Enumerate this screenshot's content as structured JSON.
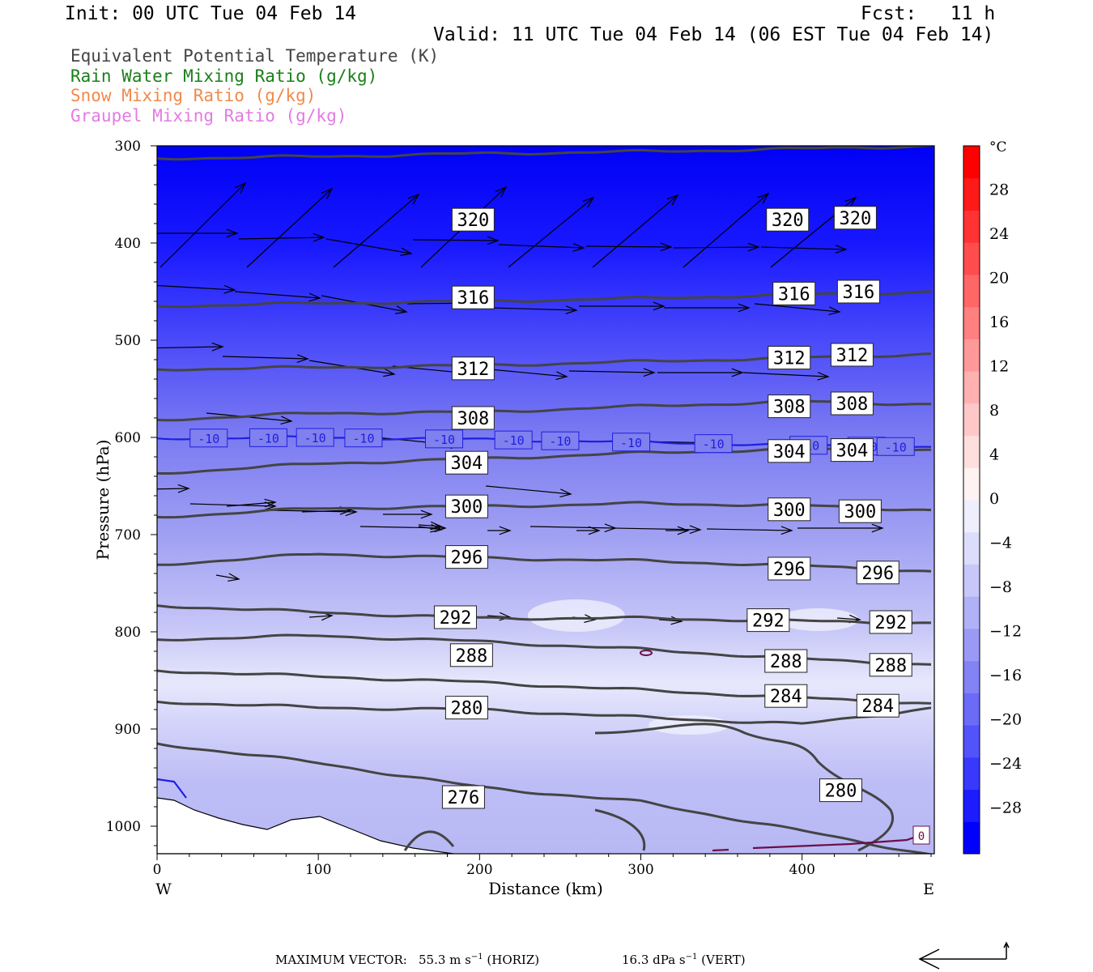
{
  "header": {
    "init": "Init: 00 UTC Tue 04 Feb 14",
    "fcst": "Fcst:   11 h",
    "valid": "Valid: 11 UTC Tue 04 Feb 14 (06 EST Tue 04 Feb 14)"
  },
  "legend": [
    {
      "label": "Equivalent Potential Temperature (K)",
      "color": "#444444"
    },
    {
      "label": "Rain Water Mixing Ratio (g/kg)",
      "color": "#1a7f1a"
    },
    {
      "label": "Snow Mixing Ratio (g/kg)",
      "color": "#f08a4b"
    },
    {
      "label": "Graupel Mixing Ratio (g/kg)",
      "color": "#e37be3"
    }
  ],
  "chart_data": {
    "type": "cross-section contour",
    "xlabel": "Distance (km)",
    "ylabel": "Pressure (hPa)",
    "xlim": [
      0,
      482
    ],
    "ylim": [
      1030,
      300
    ],
    "x_ticks": [
      "0",
      "100",
      "200",
      "300",
      "400"
    ],
    "y_ticks": [
      "300",
      "400",
      "500",
      "600",
      "700",
      "800",
      "900",
      "1000"
    ],
    "left_end_label": "W",
    "right_end_label": "E",
    "theta_e_contours": [
      {
        "value": "320",
        "p": [
          313,
          311,
          308,
          306,
          303,
          300
        ],
        "labels": [
          [
            196,
            376
          ],
          [
            391,
            376
          ],
          [
            433,
            374
          ]
        ]
      },
      {
        "value": "316",
        "p": [
          465,
          462,
          460,
          457,
          453,
          450
        ],
        "labels": [
          [
            196,
            456
          ],
          [
            395,
            452
          ],
          [
            435,
            450
          ]
        ]
      },
      {
        "value": "312",
        "p": [
          530,
          528,
          526,
          522,
          518,
          514
        ],
        "labels": [
          [
            196,
            529
          ],
          [
            392,
            518
          ],
          [
            431,
            515
          ]
        ]
      },
      {
        "value": "308",
        "p": [
          582,
          575,
          574,
          568,
          563,
          566
        ],
        "labels": [
          [
            196,
            580
          ],
          [
            392,
            568
          ],
          [
            431,
            565
          ]
        ]
      },
      {
        "value": "304",
        "p": [
          637,
          627,
          622,
          616,
          612,
          613
        ],
        "labels": [
          [
            192,
            626
          ],
          [
            392,
            614
          ],
          [
            431,
            613
          ]
        ]
      },
      {
        "value": "300",
        "p": [
          682,
          673,
          671,
          668,
          670,
          675
        ],
        "labels": [
          [
            192,
            671
          ],
          [
            392,
            674
          ],
          [
            436,
            676
          ]
        ]
      },
      {
        "value": "296",
        "p": [
          731,
          720,
          724,
          727,
          732,
          738
        ],
        "labels": [
          [
            192,
            723
          ],
          [
            392,
            735
          ],
          [
            447,
            739
          ]
        ]
      },
      {
        "value": "292",
        "p": [
          773,
          780,
          786,
          786,
          789,
          791
        ],
        "labels": [
          [
            185,
            785
          ],
          [
            379,
            788
          ],
          [
            455,
            790
          ]
        ]
      },
      {
        "value": "288",
        "p": [
          808,
          804,
          810,
          818,
          828,
          834
        ],
        "labels": [
          [
            195,
            824
          ],
          [
            390,
            830
          ],
          [
            455,
            834
          ]
        ]
      },
      {
        "value": "284",
        "p": [
          840,
          846,
          852,
          860,
          868,
          874
        ],
        "labels": [
          [
            390,
            866
          ],
          [
            447,
            876
          ]
        ]
      },
      {
        "value": "280",
        "p": [
          872,
          878,
          880,
          888,
          895,
          878
        ],
        "labels": [
          [
            192,
            878
          ]
        ]
      },
      {
        "value": "276",
        "p": [
          915,
          935,
          960,
          975,
          1005,
          1030
        ],
        "labels": [
          [
            190,
            970
          ]
        ]
      }
    ],
    "theta_e_280_loop": {
      "value": "280",
      "label": [
        424,
        963
      ]
    },
    "isotherm_minus10": {
      "value": "-10",
      "color": "#1f1fe0",
      "p": [
        601,
        600,
        602,
        605,
        608,
        610
      ],
      "labels": [
        32,
        69,
        98,
        128,
        178,
        221,
        250,
        294,
        345,
        404,
        440,
        458
      ]
    },
    "isotherm_0_label": "0",
    "colorbar": {
      "unit": "°C",
      "labels": [
        "28",
        "24",
        "20",
        "16",
        "12",
        "8",
        "4",
        "0",
        "−4",
        "−8",
        "−12",
        "−16",
        "−20",
        "−24",
        "−28"
      ],
      "colors": [
        "#0000ff",
        "#1c1cff",
        "#3939fd",
        "#5353fb",
        "#6b6bf8",
        "#8383f6",
        "#9a9af6",
        "#b1b1f7",
        "#c7c7f9",
        "#dcdcfb",
        "#eeeefd",
        "#fff2f2",
        "#ffdede",
        "#ffc8c8",
        "#ffb1b1",
        "#ff9999",
        "#ff8080",
        "#ff6666",
        "#ff4d4d",
        "#ff3333",
        "#ff1a1a",
        "#ff0000"
      ]
    }
  },
  "footer": {
    "max_vector_label": "MAXIMUM VECTOR:",
    "horiz_value": "55.3 m s",
    "horiz_unit": "(HORIZ)",
    "vert_value": "16.3 dPa s",
    "vert_unit": "(VERT)",
    "exponent": "−1"
  }
}
